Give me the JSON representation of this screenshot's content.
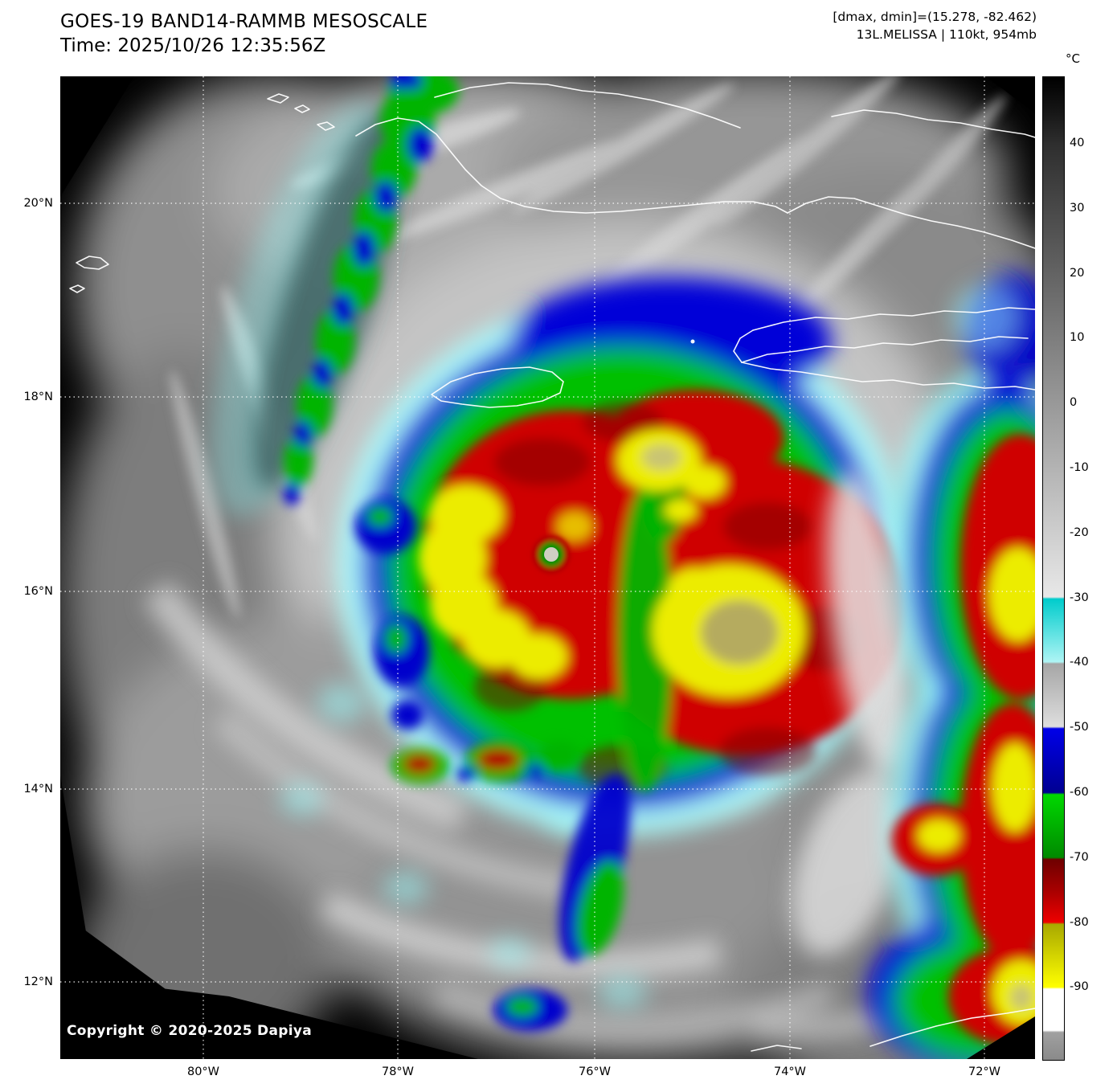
{
  "header": {
    "title": "GOES-19 BAND14-RAMMB MESOSCALE",
    "time": "Time: 2025/10/26 12:35:56Z",
    "dmax_dmin": "[dmax, dmin]=(15.278, -82.462)",
    "storm": "13L.MELISSA | 110kt, 954mb"
  },
  "colorbar": {
    "unit": "°C",
    "ticks": [
      "40",
      "30",
      "20",
      "10",
      "0",
      "-10",
      "-20",
      "-30",
      "-40",
      "-50",
      "-60",
      "-70",
      "-80",
      "-90"
    ],
    "palette": {
      "warm_gray_dark": "#2e2e2e",
      "warm_gray_light": "#e8e8e8",
      "cyan": "#00cccc",
      "blue": "#0000d8",
      "green": "#00c000",
      "dark_red": "#6e0000",
      "red": "#ee0000",
      "yellow": "#ffff00",
      "below_min": "#ffffff"
    }
  },
  "map": {
    "lat_labels": [
      "20°N",
      "18°N",
      "16°N",
      "14°N",
      "12°N"
    ],
    "lon_labels": [
      "80°W",
      "78°W",
      "76°W",
      "74°W",
      "72°W"
    ],
    "copyright": "Copyright © 2020-2025 Dapiya"
  }
}
